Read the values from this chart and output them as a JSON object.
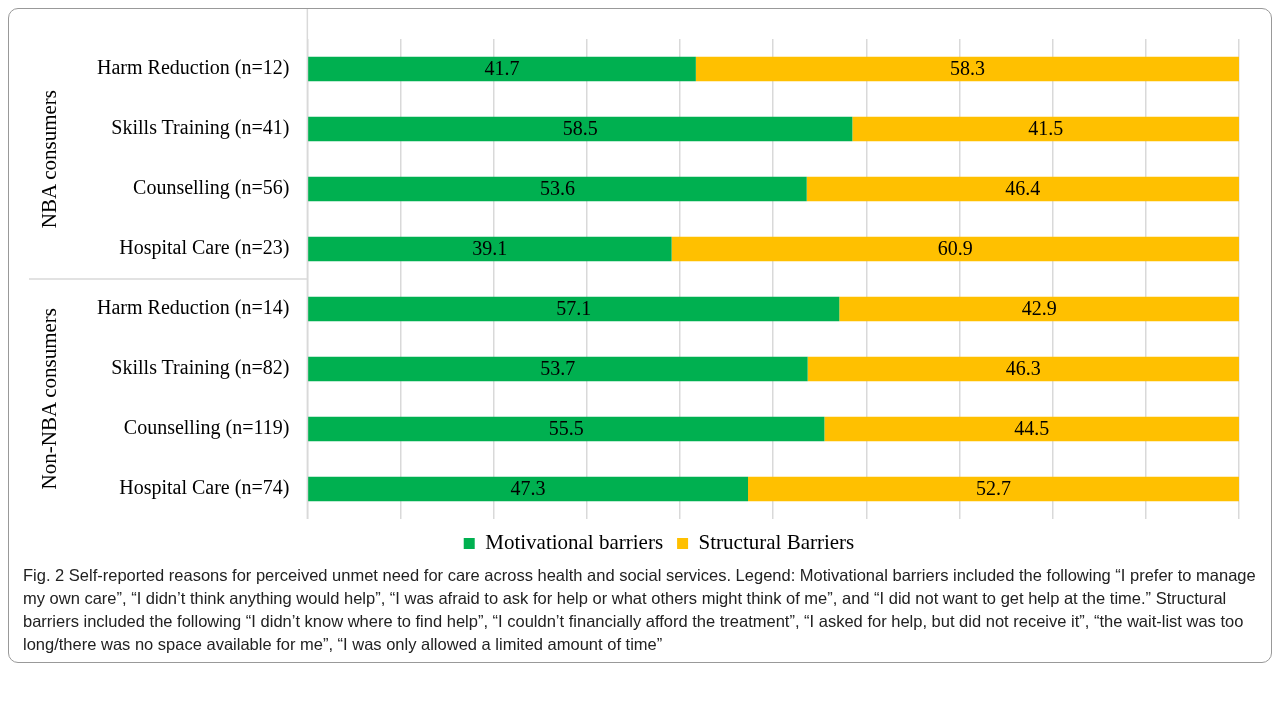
{
  "chart_data": {
    "type": "bar",
    "orientation": "horizontal",
    "stacked": true,
    "categories": [
      "Harm Reduction (n=12)",
      "Skills Training (n=41)",
      "Counselling (n=56)",
      "Hospital Care (n=23)",
      "Harm Reduction (n=14)",
      "Skills Training (n=82)",
      "Counselling (n=119)",
      "Hospital Care (n=74)"
    ],
    "series": [
      {
        "name": "Motivational barriers",
        "color": "#00b050",
        "values": [
          41.7,
          58.5,
          53.6,
          39.1,
          57.1,
          53.7,
          55.5,
          47.3
        ]
      },
      {
        "name": "Structural Barriers",
        "color": "#ffc000",
        "values": [
          58.3,
          41.5,
          46.4,
          60.9,
          42.9,
          46.3,
          44.5,
          52.7
        ]
      }
    ],
    "xlim": [
      0,
      100
    ],
    "xticks": [
      {
        "value": 0,
        "label": null
      },
      {
        "value": 10,
        "label": null
      },
      {
        "value": 20,
        "label": null
      },
      {
        "value": 30,
        "label": null
      },
      {
        "value": 40,
        "label": null
      },
      {
        "value": 50,
        "label": null
      },
      {
        "value": 60,
        "label": null
      },
      {
        "value": 70,
        "label": null
      },
      {
        "value": 80,
        "label": null
      },
      {
        "value": 90,
        "label": null
      },
      {
        "value": 100,
        "label": null
      }
    ],
    "tick_labels": "y",
    "grid": "x",
    "legend": "bottom",
    "data_labels": true,
    "annotations": [
      "NBA consumers",
      "Non-NBA consumers",
      "Fig. 2 Self-reported reasons for perceived unmet need for care across health and social services. Legend: Motivational barriers included the following “I prefer to manage my own care”, “I didn’t think anything would help”, “I was afraid to ask for help or what others might think of me”, and “I did not want to get help at the time.” Structural barriers included the following “I didn’t know where to find help”, “I couldn’t financially afford the treatment”, “I asked for help, but did not receive it”, “the wait-list was too long/there was no space available for me”, “I was only allowed a limited amount of time”"
    ]
  }
}
